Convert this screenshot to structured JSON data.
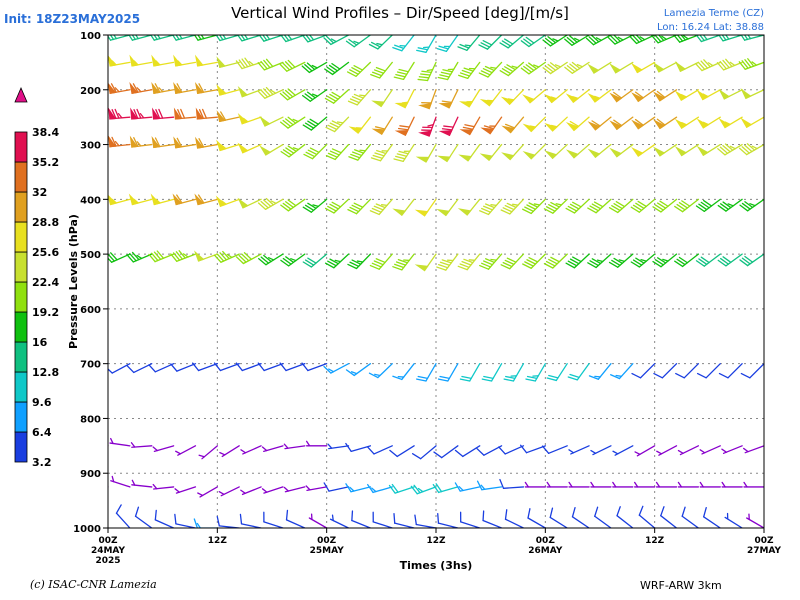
{
  "header": {
    "title": "Vertical Wind Profiles – Dir/Speed [deg]/[m/s]",
    "init": "Init: 18Z23MAY2025",
    "location_line1": "Lamezia Terme (CZ)",
    "location_line2": "Lon: 16.24 Lat: 38.88"
  },
  "footer": {
    "credit": "(c) ISAC-CNR Lamezia",
    "model": "WRF-ARW 3km"
  },
  "chart_data": {
    "type": "wind_barbs",
    "title": "Vertical Wind Profiles – Dir/Speed [deg]/[m/s]",
    "xlabel": "Times (3hs)",
    "ylabel": "Pressure Levels (hPa)",
    "ylim": [
      1000,
      100
    ],
    "y_ticks": [
      100,
      200,
      300,
      400,
      500,
      600,
      700,
      800,
      900,
      1000
    ],
    "x_ticks": [
      {
        "label": [
          "00Z",
          "24MAY",
          "2025"
        ],
        "hour": 0
      },
      {
        "label": [
          "12Z"
        ],
        "hour": 12
      },
      {
        "label": [
          "00Z",
          "25MAY"
        ],
        "hour": 24
      },
      {
        "label": [
          "12Z"
        ],
        "hour": 36
      },
      {
        "label": [
          "00Z",
          "26MAY"
        ],
        "hour": 48
      },
      {
        "label": [
          "12Z"
        ],
        "hour": 60
      },
      {
        "label": [
          "00Z",
          "27MAY"
        ],
        "hour": 72
      }
    ],
    "grid": true,
    "colorbar": {
      "labels": [
        "3.2",
        "6.4",
        "9.6",
        "12.8",
        "16",
        "19.2",
        "22.4",
        "25.6",
        "28.8",
        "32",
        "35.2",
        "38.4"
      ],
      "colors": [
        "#8800cc",
        "#1a3ee0",
        "#10a0ff",
        "#10c8c8",
        "#10c080",
        "#10c010",
        "#90e010",
        "#c8e030",
        "#e8e020",
        "#e0a020",
        "#e07020",
        "#e01050",
        "#e01088"
      ]
    },
    "series": [
      {
        "hour": 0,
        "levels": [
          {
            "p": 100,
            "dir": 255,
            "spd": 14
          },
          {
            "p": 150,
            "dir": 260,
            "spd": 28
          },
          {
            "p": 200,
            "dir": 260,
            "spd": 34
          },
          {
            "p": 250,
            "dir": 265,
            "spd": 38
          },
          {
            "p": 300,
            "dir": 265,
            "spd": 33
          },
          {
            "p": 400,
            "dir": 255,
            "spd": 26
          },
          {
            "p": 500,
            "dir": 245,
            "spd": 14
          },
          {
            "p": 700,
            "dir": 240,
            "spd": 4
          },
          {
            "p": 850,
            "dir": 290,
            "spd": 3
          },
          {
            "p": 925,
            "dir": 300,
            "spd": 3
          },
          {
            "p": 1000,
            "dir": 330,
            "spd": 3
          }
        ]
      },
      {
        "hour": 12,
        "levels": [
          {
            "p": 100,
            "dir": 255,
            "spd": 16
          },
          {
            "p": 150,
            "dir": 260,
            "spd": 26
          },
          {
            "p": 200,
            "dir": 260,
            "spd": 30
          },
          {
            "p": 250,
            "dir": 265,
            "spd": 34
          },
          {
            "p": 300,
            "dir": 260,
            "spd": 30
          },
          {
            "p": 400,
            "dir": 255,
            "spd": 30
          },
          {
            "p": 500,
            "dir": 250,
            "spd": 24
          },
          {
            "p": 700,
            "dir": 250,
            "spd": 6
          },
          {
            "p": 850,
            "dir": 230,
            "spd": 3
          },
          {
            "p": 925,
            "dir": 240,
            "spd": 3
          },
          {
            "p": 1000,
            "dir": 270,
            "spd": 7
          }
        ]
      },
      {
        "hour": 24,
        "levels": [
          {
            "p": 100,
            "dir": 250,
            "spd": 14
          },
          {
            "p": 150,
            "dir": 240,
            "spd": 18
          },
          {
            "p": 200,
            "dir": 235,
            "spd": 18
          },
          {
            "p": 250,
            "dir": 230,
            "spd": 19
          },
          {
            "p": 300,
            "dir": 225,
            "spd": 20
          },
          {
            "p": 400,
            "dir": 230,
            "spd": 18
          },
          {
            "p": 500,
            "dir": 230,
            "spd": 15
          },
          {
            "p": 700,
            "dir": 250,
            "spd": 6
          },
          {
            "p": 850,
            "dir": 270,
            "spd": 3
          },
          {
            "p": 925,
            "dir": 260,
            "spd": 3
          },
          {
            "p": 1000,
            "dir": 300,
            "spd": 3
          }
        ]
      },
      {
        "hour": 36,
        "levels": [
          {
            "p": 100,
            "dir": 210,
            "spd": 12
          },
          {
            "p": 150,
            "dir": 205,
            "spd": 22
          },
          {
            "p": 200,
            "dir": 200,
            "spd": 30
          },
          {
            "p": 250,
            "dir": 200,
            "spd": 38
          },
          {
            "p": 300,
            "dir": 210,
            "spd": 24
          },
          {
            "p": 400,
            "dir": 215,
            "spd": 26
          },
          {
            "p": 500,
            "dir": 215,
            "spd": 24
          },
          {
            "p": 700,
            "dir": 210,
            "spd": 9
          },
          {
            "p": 850,
            "dir": 230,
            "spd": 5
          },
          {
            "p": 925,
            "dir": 250,
            "spd": 12
          },
          {
            "p": 1000,
            "dir": 280,
            "spd": 6
          }
        ]
      },
      {
        "hour": 48,
        "levels": [
          {
            "p": 100,
            "dir": 235,
            "spd": 16
          },
          {
            "p": 150,
            "dir": 235,
            "spd": 22
          },
          {
            "p": 200,
            "dir": 230,
            "spd": 26
          },
          {
            "p": 250,
            "dir": 225,
            "spd": 28
          },
          {
            "p": 300,
            "dir": 225,
            "spd": 24
          },
          {
            "p": 400,
            "dir": 225,
            "spd": 22
          },
          {
            "p": 500,
            "dir": 225,
            "spd": 20
          },
          {
            "p": 700,
            "dir": 210,
            "spd": 12
          },
          {
            "p": 850,
            "dir": 250,
            "spd": 4
          },
          {
            "p": 925,
            "dir": 270,
            "spd": 3
          },
          {
            "p": 1000,
            "dir": 300,
            "spd": 4
          }
        ]
      },
      {
        "hour": 60,
        "levels": [
          {
            "p": 100,
            "dir": 245,
            "spd": 18
          },
          {
            "p": 150,
            "dir": 240,
            "spd": 26
          },
          {
            "p": 200,
            "dir": 235,
            "spd": 30
          },
          {
            "p": 250,
            "dir": 235,
            "spd": 30
          },
          {
            "p": 300,
            "dir": 235,
            "spd": 26
          },
          {
            "p": 400,
            "dir": 230,
            "spd": 20
          },
          {
            "p": 500,
            "dir": 230,
            "spd": 17
          },
          {
            "p": 700,
            "dir": 225,
            "spd": 6
          },
          {
            "p": 850,
            "dir": 240,
            "spd": 3
          },
          {
            "p": 925,
            "dir": 270,
            "spd": 3
          },
          {
            "p": 1000,
            "dir": 310,
            "spd": 5
          }
        ]
      },
      {
        "hour": 72,
        "levels": [
          {
            "p": 100,
            "dir": 255,
            "spd": 14
          },
          {
            "p": 150,
            "dir": 250,
            "spd": 22
          },
          {
            "p": 200,
            "dir": 245,
            "spd": 24
          },
          {
            "p": 250,
            "dir": 240,
            "spd": 26
          },
          {
            "p": 300,
            "dir": 240,
            "spd": 23
          },
          {
            "p": 400,
            "dir": 235,
            "spd": 18
          },
          {
            "p": 500,
            "dir": 235,
            "spd": 15
          },
          {
            "p": 700,
            "dir": 225,
            "spd": 4
          },
          {
            "p": 850,
            "dir": 250,
            "spd": 3
          },
          {
            "p": 925,
            "dir": 270,
            "spd": 3
          },
          {
            "p": 1000,
            "dir": 300,
            "spd": 3
          }
        ]
      }
    ]
  }
}
